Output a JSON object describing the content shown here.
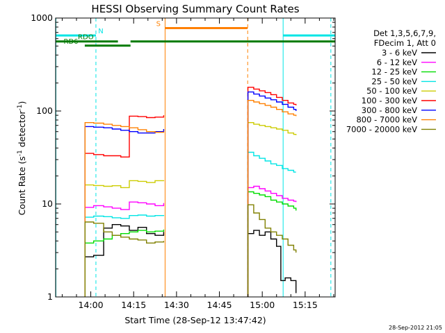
{
  "chart_data": {
    "type": "line",
    "title": "HESSI Observing Summary Count Rates",
    "xlabel": "Start Time (28-Sep-12 13:47:42)",
    "ylabel_main": "Count Rate (s",
    "ylabel_sup1": "-1",
    "ylabel_mid": " detector",
    "ylabel_sup2": "-1",
    "ylabel_end": ")",
    "timestamp": "28-Sep-2012 21:05",
    "x_units": "minutes of day",
    "xlim": [
      827.7,
      925.5
    ],
    "ylim": [
      1,
      1000
    ],
    "y_scale": "log",
    "x_ticks": [
      {
        "value": 840,
        "label": "14:00"
      },
      {
        "value": 855,
        "label": "14:15"
      },
      {
        "value": 870,
        "label": "14:30"
      },
      {
        "value": 885,
        "label": "14:45"
      },
      {
        "value": 900,
        "label": "15:00"
      },
      {
        "value": 915,
        "label": "15:15"
      }
    ],
    "y_ticks": [
      {
        "value": 1,
        "label": "1"
      },
      {
        "value": 10,
        "label": "10"
      },
      {
        "value": 100,
        "label": "100"
      },
      {
        "value": 1000,
        "label": "1000"
      }
    ],
    "legend": {
      "placement": "right",
      "header": [
        "Det 1,3,5,6,7,9,",
        "FDecim 1, Att 0"
      ]
    },
    "flags": [
      {
        "label": "N",
        "color": "#00e5e5",
        "y": 650,
        "segments": [
          [
            827.7,
            841.8
          ],
          [
            907.3,
            925.5
          ]
        ],
        "label_x": 842.6
      },
      {
        "label": "RDO",
        "color": "#007a00",
        "y": 560,
        "segments": [
          [
            827.7,
            849.5
          ],
          [
            853.9,
            925.5
          ]
        ],
        "label_x": 835.5
      },
      {
        "label": "RD6",
        "color": "#007a00",
        "y": 505,
        "segments": [
          [
            837.9,
            853.9
          ]
        ],
        "label_x": 830.5
      },
      {
        "label": "S",
        "color": "#ff8000",
        "y": 780,
        "segments": [
          [
            866.0,
            894.9
          ]
        ],
        "label_x": 862.9
      }
    ],
    "vlines": [
      {
        "x": 827.8,
        "color": "#00e5e5",
        "style": "solid"
      },
      {
        "x": 841.8,
        "color": "#00e5e5",
        "style": "dashed"
      },
      {
        "x": 866.0,
        "color": "#ff8000",
        "style": "solid"
      },
      {
        "x": 894.9,
        "color": "#ff8000",
        "style": "dashed"
      },
      {
        "x": 907.3,
        "color": "#00e5e5",
        "style": "solid"
      },
      {
        "x": 924.0,
        "color": "#00e5e5",
        "style": "dashed"
      }
    ],
    "series": [
      {
        "name": "3 - 6 keV",
        "color": "#000000",
        "segments": [
          {
            "x": [
              838.0,
              841.0,
              844.5,
              847.5,
              850.5,
              853.5,
              856.5,
              859.5,
              862.5,
              865.5
            ],
            "y": [
              2.7,
              2.8,
              5.5,
              6.0,
              5.8,
              5.2,
              5.6,
              4.8,
              4.6,
              5.0
            ]
          },
          {
            "x": [
              895.0,
              897.0,
              899.0,
              901.0,
              903.0,
              905.0,
              906.5,
              908.0,
              910.0,
              911.8
            ],
            "y": [
              4.8,
              5.2,
              4.6,
              5.0,
              4.2,
              3.5,
              1.5,
              1.6,
              1.5,
              1.1
            ]
          }
        ]
      },
      {
        "name": "6 - 12 keV",
        "color": "#ff00ff",
        "segments": [
          {
            "x": [
              838.0,
              841.0,
              844.5,
              847.5,
              850.5,
              853.5,
              856.5,
              859.5,
              862.5,
              865.5
            ],
            "y": [
              9.2,
              9.6,
              9.3,
              9.0,
              8.7,
              10.5,
              10.3,
              10.0,
              9.6,
              10.2
            ]
          },
          {
            "x": [
              895.0,
              897.0,
              899.0,
              901.0,
              903.0,
              905.0,
              907.0,
              909.0,
              911.0,
              911.8
            ],
            "y": [
              15.0,
              15.5,
              14.6,
              13.8,
              13.0,
              12.3,
              11.5,
              11.0,
              10.7,
              10.5
            ]
          }
        ]
      },
      {
        "name": "12 - 25 keV",
        "color": "#00dd00",
        "segments": [
          {
            "x": [
              838.0,
              841.0,
              844.5,
              847.5,
              850.5,
              853.5,
              856.5,
              859.5,
              862.5,
              865.5
            ],
            "y": [
              3.8,
              4.0,
              4.2,
              4.6,
              4.8,
              5.0,
              5.2,
              5.0,
              5.1,
              5.3
            ]
          },
          {
            "x": [
              895.0,
              897.0,
              899.0,
              901.0,
              903.0,
              905.0,
              907.0,
              909.0,
              911.0,
              911.8
            ],
            "y": [
              13.5,
              13.0,
              12.5,
              12.0,
              11.0,
              10.5,
              10.0,
              9.5,
              9.0,
              8.5
            ]
          }
        ]
      },
      {
        "name": "25 - 50 keV",
        "color": "#00e5e5",
        "segments": [
          {
            "x": [
              838.0,
              841.0,
              844.5,
              847.5,
              850.5,
              853.5,
              856.5,
              859.5,
              862.5,
              865.5
            ],
            "y": [
              7.2,
              7.4,
              7.3,
              7.1,
              7.0,
              7.5,
              7.6,
              7.4,
              7.5,
              7.6
            ]
          },
          {
            "x": [
              895.0,
              897.0,
              899.0,
              901.0,
              903.0,
              905.0,
              907.0,
              909.0,
              911.0,
              911.8
            ],
            "y": [
              36,
              33,
              31,
              29,
              27,
              26,
              24,
              23,
              22,
              22
            ]
          }
        ]
      },
      {
        "name": "50 - 100 keV",
        "color": "#cccc00",
        "segments": [
          {
            "x": [
              838.0,
              841.0,
              844.5,
              847.5,
              850.5,
              853.5,
              856.5,
              859.5,
              862.5,
              865.5
            ],
            "y": [
              16,
              15.8,
              15.5,
              15.7,
              15.0,
              17.8,
              17.5,
              17.0,
              17.8,
              18.0
            ]
          },
          {
            "x": [
              895.0,
              897.0,
              899.0,
              901.0,
              903.0,
              905.0,
              907.0,
              909.0,
              911.0,
              911.8
            ],
            "y": [
              75,
              72,
              70,
              68,
              66,
              64,
              62,
              58,
              56,
              55
            ]
          }
        ]
      },
      {
        "name": "100 - 300 keV",
        "color": "#ff0000",
        "segments": [
          {
            "x": [
              838.0,
              841.0,
              844.5,
              847.5,
              850.5,
              853.5,
              856.5,
              859.5,
              862.5,
              865.5
            ],
            "y": [
              35,
              34,
              33,
              33,
              32,
              88,
              87,
              85,
              86,
              90
            ]
          },
          {
            "x": [
              895.0,
              897.0,
              899.0,
              901.0,
              903.0,
              905.0,
              907.0,
              909.0,
              911.0,
              911.8
            ],
            "y": [
              180,
              172,
              165,
              158,
              150,
              140,
              130,
              122,
              118,
              115
            ]
          }
        ]
      },
      {
        "name": "300 - 800 keV",
        "color": "#0000ff",
        "segments": [
          {
            "x": [
              838.0,
              841.0,
              844.5,
              847.5,
              850.5,
              853.5,
              856.5,
              859.5,
              862.5,
              865.5
            ],
            "y": [
              68,
              67,
              66,
              64,
              62,
              60,
              58,
              58,
              60,
              64
            ]
          },
          {
            "x": [
              895.0,
              897.0,
              899.0,
              901.0,
              903.0,
              905.0,
              907.0,
              909.0,
              911.0,
              911.8
            ],
            "y": [
              160,
              152,
              145,
              138,
              132,
              125,
              118,
              110,
              104,
              100
            ]
          }
        ]
      },
      {
        "name": "800 - 7000 keV",
        "color": "#ff8000",
        "segments": [
          {
            "x": [
              838.0,
              841.0,
              844.5,
              847.5,
              850.5,
              853.5,
              856.5,
              859.5,
              862.5,
              865.5
            ],
            "y": [
              75,
              74,
              72,
              70,
              68,
              66,
              63,
              60,
              59,
              60
            ]
          },
          {
            "x": [
              895.0,
              897.0,
              899.0,
              901.0,
              903.0,
              905.0,
              907.0,
              909.0,
              911.0,
              911.8
            ],
            "y": [
              130,
              125,
              120,
              115,
              110,
              104,
              98,
              93,
              90,
              88
            ]
          }
        ]
      },
      {
        "name": "7000 - 20000 keV",
        "color": "#808000",
        "segments": [
          {
            "x": [
              838.0,
              841.0,
              844.5,
              847.5,
              850.5,
              853.5,
              856.5,
              859.5,
              862.5,
              865.5
            ],
            "y": [
              6.4,
              6.2,
              5.0,
              4.6,
              4.4,
              4.2,
              4.1,
              3.8,
              3.9,
              4.0
            ]
          },
          {
            "x": [
              895.0,
              897.0,
              899.0,
              901.0,
              903.0,
              905.0,
              907.0,
              909.0,
              911.0,
              911.8
            ],
            "y": [
              9.8,
              8.0,
              6.8,
              5.5,
              5.0,
              4.6,
              4.2,
              3.6,
              3.2,
              3.0
            ]
          }
        ]
      }
    ]
  }
}
